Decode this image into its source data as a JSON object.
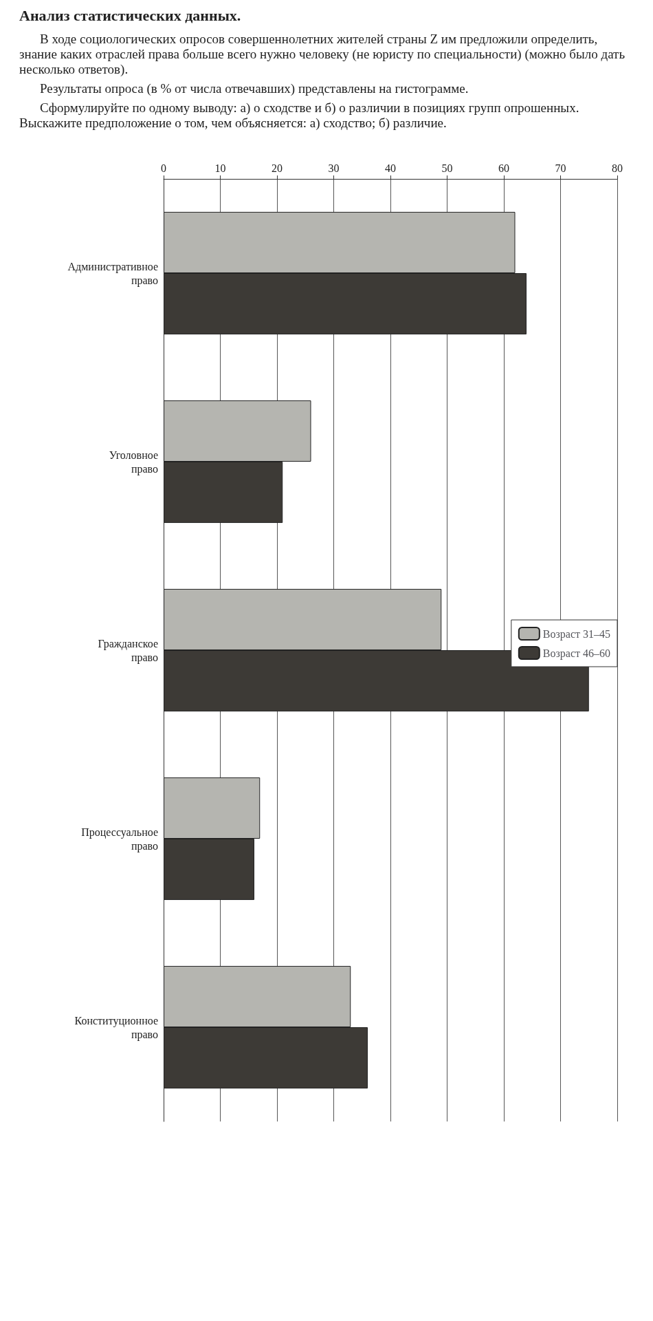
{
  "chart_data": {
    "type": "bar",
    "orientation": "horizontal",
    "title": "Анализ статистических данных.",
    "annotations": [
      "В ходе социологических опросов совершеннолетних жителей страны Z им предложили определить, знание каких отраслей права больше всего нужно человеку (не юристу по специальности) (можно было дать несколько ответов).",
      "Результаты опроса (в % от числа отвечавших) представлены на гистограмме.",
      "Сформулируйте по одному выводу: а) о сходстве и б) о различии в позициях групп опрошенных. Выскажите предположение о том, чем объясняется: а) сходство; б) различие."
    ],
    "categories": [
      "Административное право",
      "Уголовное право",
      "Гражданское право",
      "Процессуальное право",
      "Конституционное право"
    ],
    "series": [
      {
        "name": "Возраст 31–45",
        "color": "#b5b5b0",
        "values": [
          62,
          26,
          49,
          17,
          33
        ]
      },
      {
        "name": "Возраст 46–60",
        "color": "#3d3a36",
        "values": [
          64,
          21,
          75,
          16,
          36
        ]
      }
    ],
    "xlim": [
      0,
      80
    ],
    "xticks": [
      0,
      10,
      20,
      30,
      40,
      50,
      60,
      70,
      80
    ],
    "grid": "x",
    "legend": "right"
  }
}
